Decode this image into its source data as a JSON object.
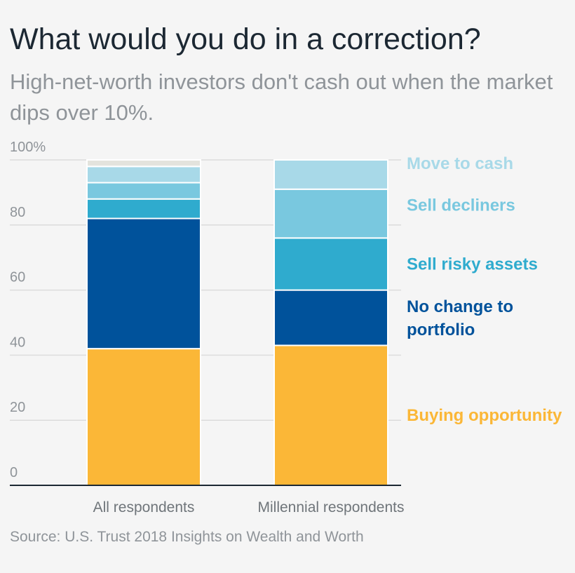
{
  "title": "What would you do in a correction?",
  "subtitle": "High-net-worth investors don't cash out when the market dips over 10%.",
  "source": "Source: U.S. Trust 2018 Insights on Wealth and Worth",
  "chart_data": {
    "type": "bar",
    "stacked": true,
    "categories": [
      "All respondents",
      "Millennial respondents"
    ],
    "ylim": [
      0,
      100
    ],
    "yticks": [
      "0",
      "20",
      "40",
      "60",
      "80",
      "100%"
    ],
    "ytick_values": [
      0,
      20,
      40,
      60,
      80,
      100
    ],
    "grid": true,
    "legend_placement": "right",
    "series": [
      {
        "name": "Buying opportunity",
        "label_lines": [
          "Buying opportunity"
        ],
        "color": "#fbb737",
        "values": [
          42,
          43
        ]
      },
      {
        "name": "No change to portfolio",
        "label_lines": [
          "No change to",
          "portfolio"
        ],
        "color": "#00529b",
        "values": [
          40,
          17
        ]
      },
      {
        "name": "Sell risky assets",
        "label_lines": [
          "Sell risky assets"
        ],
        "color": "#2fabce",
        "values": [
          6,
          16
        ]
      },
      {
        "name": "Sell decliners",
        "label_lines": [
          "Sell decliners"
        ],
        "color": "#79c8df",
        "values": [
          5,
          15
        ]
      },
      {
        "name": "Move to cash",
        "label_lines": [
          "Move to cash"
        ],
        "color": "#a8d9e8",
        "values": [
          5,
          9
        ]
      },
      {
        "name": "",
        "label_lines": [],
        "color": "#e3e3dd",
        "values": [
          2,
          0
        ]
      }
    ]
  }
}
